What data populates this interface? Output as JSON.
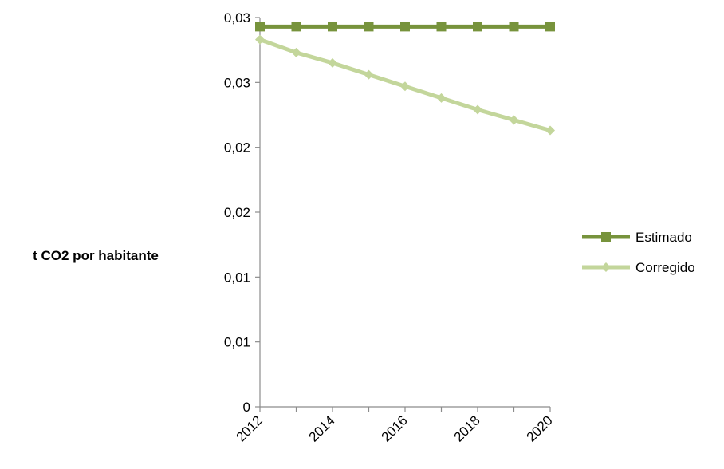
{
  "chart_data": {
    "type": "line",
    "title": "",
    "xlabel": "",
    "ylabel": "t CO2 por habitante",
    "x": [
      2012,
      2013,
      2014,
      2015,
      2016,
      2017,
      2018,
      2019,
      2020
    ],
    "x_tick_labels": [
      "2012",
      "2014",
      "2016",
      "2018",
      "2020"
    ],
    "y_tick_labels": [
      "0",
      "0,01",
      "0,01",
      "0,02",
      "0,02",
      "0,03",
      "0,03"
    ],
    "ylim": [
      0,
      0.03
    ],
    "grid": false,
    "legend_position": "right",
    "series": [
      {
        "name": "Estimado",
        "marker": "square",
        "color": "#77933C",
        "values": [
          0.0293,
          0.0293,
          0.0293,
          0.0293,
          0.0293,
          0.0293,
          0.0293,
          0.0293,
          0.0293
        ]
      },
      {
        "name": "Corregido",
        "marker": "diamond",
        "color": "#C3D69B",
        "values": [
          0.0283,
          0.0273,
          0.0265,
          0.0256,
          0.0247,
          0.0238,
          0.0229,
          0.0221,
          0.0213
        ]
      }
    ]
  }
}
